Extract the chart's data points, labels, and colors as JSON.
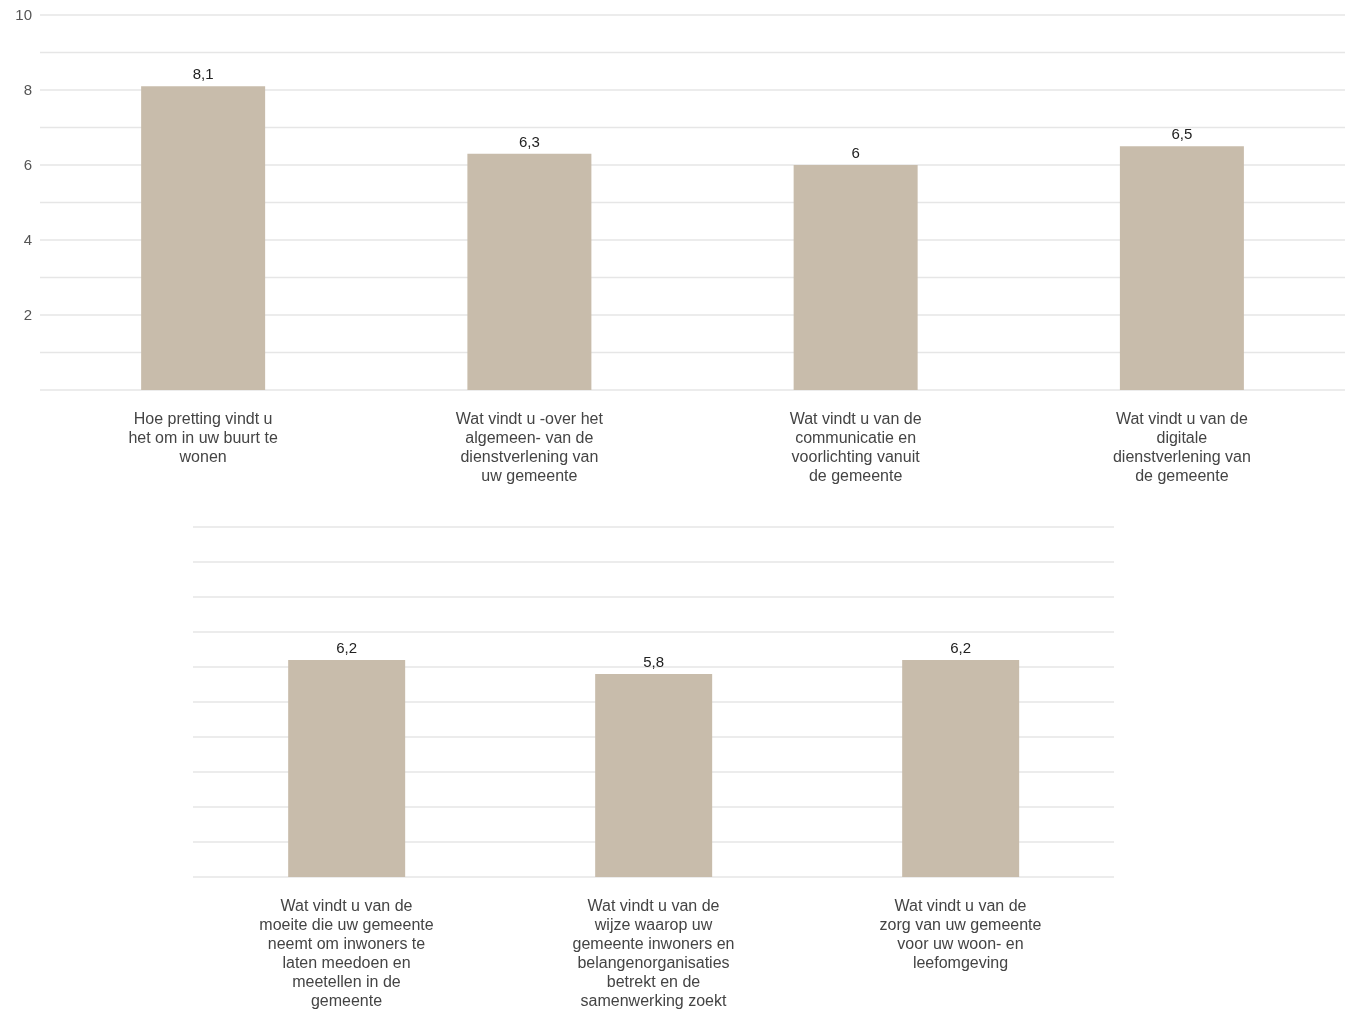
{
  "chart_data": [
    {
      "type": "bar",
      "categories": [
        "Hoe pretting vindt u het om in uw buurt te wonen",
        "Wat vindt u -over het algemeen- van de dienstverlening van uw gemeente",
        "Wat vindt u van de communicatie en voorlichting vanuit de gemeente",
        "Wat vindt u van de digitale dienstverlening van de gemeente"
      ],
      "values": [
        8.1,
        6.3,
        6,
        6.5
      ],
      "value_labels": [
        "8,1",
        "6,3",
        "6",
        "6,5"
      ],
      "color": "#c8bcab",
      "ylim": [
        0,
        10
      ],
      "yticks": [
        {
          "value": 0,
          "label": null
        },
        {
          "value": 1,
          "label": null
        },
        2,
        {
          "value": 3,
          "label": null
        },
        4,
        {
          "value": 5,
          "label": null
        },
        6,
        {
          "value": 7,
          "label": null
        },
        8,
        {
          "value": 9,
          "label": null
        },
        10
      ],
      "grid": "y"
    },
    {
      "type": "bar",
      "categories": [
        "Wat vindt u van de moeite die uw gemeente neemt om inwoners te laten meedoen en meetellen in de gemeente",
        "Wat vindt u van de wijze waarop uw gemeente inwoners en belangenorganisaties betrekt en de samenwerking zoekt",
        "Wat vindt u van de zorg van uw gemeente voor uw woon- en leefomgeving"
      ],
      "values": [
        6.2,
        5.8,
        6.2
      ],
      "value_labels": [
        "6,2",
        "5,8",
        "6,2"
      ],
      "color": "#c8bcab",
      "ylim": [
        0,
        10
      ],
      "grid": "y",
      "tick_labels": "x"
    }
  ]
}
